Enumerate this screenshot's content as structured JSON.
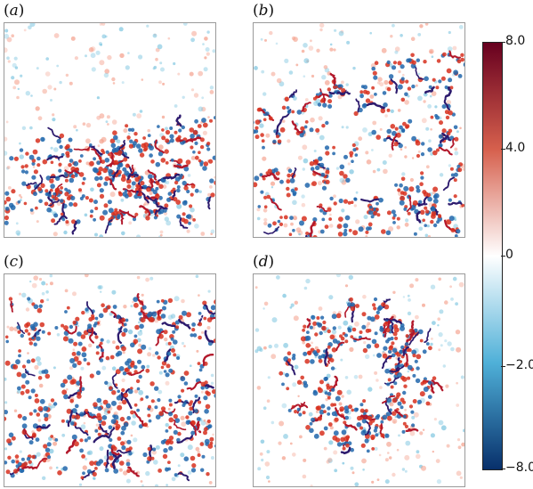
{
  "figure": {
    "panels": [
      {
        "id": "a",
        "label_prefix": "(",
        "label_letter": "a",
        "label_suffix": ")",
        "pattern": "band-bottom"
      },
      {
        "id": "b",
        "label_prefix": "(",
        "label_letter": "b",
        "label_suffix": ")",
        "pattern": "diagonal-bands"
      },
      {
        "id": "c",
        "label_prefix": "(",
        "label_letter": "c",
        "label_suffix": ")",
        "pattern": "dense-wide"
      },
      {
        "id": "d",
        "label_prefix": "(",
        "label_letter": "d",
        "label_suffix": ")",
        "pattern": "ring"
      }
    ],
    "colorbar": {
      "ticks": [
        "8.0",
        "4.0",
        "0",
        "−2.0",
        "−8.0"
      ],
      "tick_values": [
        8.0,
        4.0,
        0,
        -2.0,
        -8.0
      ],
      "range": [
        -8.0,
        8.0
      ],
      "colors": {
        "top": "#67001f",
        "upper": "#d6604d",
        "mid": "#ffffff",
        "lower": "#4fb0d8",
        "bottom": "#08306b"
      }
    },
    "colors": {
      "positive": "#d7301f",
      "positive_light": "#f4a08c",
      "negative": "#2166ac",
      "negative_light": "#7fc6e0",
      "filament_dark": "#2d1b6e",
      "filament_red": "#b2182b"
    }
  }
}
